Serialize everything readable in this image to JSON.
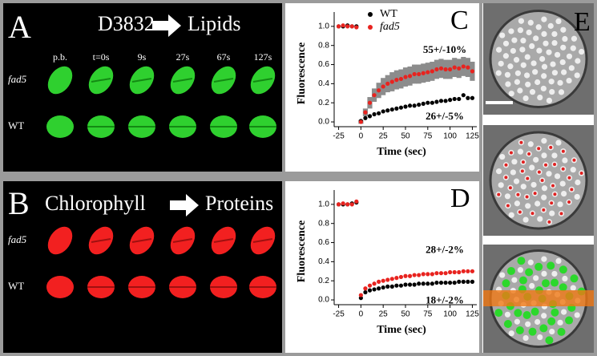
{
  "panel_a": {
    "label": "A",
    "source": "D3832",
    "target": "Lipids",
    "timepoints": [
      "p.b.",
      "t=0s",
      "9s",
      "27s",
      "67s",
      "127s"
    ],
    "rows": [
      "fad5",
      "WT"
    ]
  },
  "panel_b": {
    "label": "B",
    "source": "Chlorophyll",
    "target": "Proteins",
    "rows": [
      "fad5",
      "WT"
    ]
  },
  "panel_e": {
    "label": "E"
  },
  "chart_data": [
    {
      "type": "scatter",
      "panel": "C",
      "xlabel": "Time (sec)",
      "ylabel": "Fluorescence",
      "legend": "upper center",
      "xlim": [
        -30,
        130
      ],
      "ylim": [
        -0.05,
        1.15
      ],
      "xticks": [
        -25,
        0,
        25,
        50,
        75,
        100,
        125
      ],
      "yticks": [
        {
          "value": 0,
          "label": "0.0"
        },
        0.2,
        0.4,
        0.6,
        0.8,
        {
          "value": 1,
          "label": "1.0"
        }
      ],
      "x": [
        -25,
        -20,
        -15,
        -10,
        -5,
        0,
        5,
        10,
        15,
        20,
        25,
        30,
        35,
        40,
        45,
        50,
        55,
        60,
        65,
        70,
        75,
        80,
        85,
        90,
        95,
        100,
        105,
        110,
        115,
        120,
        125
      ],
      "series": [
        {
          "name": "WT",
          "color": "#000000",
          "annotation": "26+/-5%",
          "values": [
            1.0,
            1.0,
            1.01,
            1.0,
            1.0,
            0.01,
            0.04,
            0.06,
            0.08,
            0.09,
            0.11,
            0.12,
            0.13,
            0.14,
            0.15,
            0.16,
            0.17,
            0.17,
            0.18,
            0.19,
            0.2,
            0.2,
            0.21,
            0.22,
            0.22,
            0.23,
            0.24,
            0.24,
            0.28,
            0.25,
            0.25
          ]
        },
        {
          "name": "fad5",
          "color": "#e8231f",
          "annotation": "55+/-10%",
          "error_color": "#8c8c8c",
          "values": [
            1.0,
            1.01,
            1.0,
            1.0,
            0.99,
            0.0,
            0.1,
            0.2,
            0.28,
            0.33,
            0.37,
            0.4,
            0.42,
            0.44,
            0.45,
            0.47,
            0.48,
            0.5,
            0.5,
            0.51,
            0.52,
            0.53,
            0.55,
            0.56,
            0.55,
            0.55,
            0.57,
            0.56,
            0.58,
            0.57,
            0.53
          ],
          "error": [
            null,
            null,
            null,
            null,
            null,
            0.02,
            0.04,
            0.06,
            0.07,
            0.08,
            0.09,
            0.09,
            0.1,
            0.1,
            0.1,
            0.1,
            0.1,
            0.1,
            0.1,
            0.1,
            0.1,
            0.1,
            0.1,
            0.1,
            0.1,
            0.1,
            0.1,
            0.1,
            0.1,
            0.1,
            0.1
          ]
        }
      ]
    },
    {
      "type": "scatter",
      "panel": "D",
      "xlabel": "Time (sec)",
      "ylabel": "Fluorescence",
      "xlim": [
        -30,
        130
      ],
      "ylim": [
        -0.05,
        1.15
      ],
      "xticks": [
        -25,
        0,
        25,
        50,
        75,
        100,
        125
      ],
      "yticks": [
        {
          "value": 0,
          "label": "0.0"
        },
        0.2,
        0.4,
        0.6,
        0.8,
        {
          "value": 1,
          "label": "1.0"
        }
      ],
      "x": [
        -25,
        -20,
        -15,
        -10,
        -5,
        0,
        5,
        10,
        15,
        20,
        25,
        30,
        35,
        40,
        45,
        50,
        55,
        60,
        65,
        70,
        75,
        80,
        85,
        90,
        95,
        100,
        105,
        110,
        115,
        120,
        125
      ],
      "series": [
        {
          "color": "#000000",
          "annotation": "18+/-2%",
          "values": [
            1.0,
            1.0,
            1.0,
            1.01,
            1.02,
            0.02,
            0.08,
            0.1,
            0.11,
            0.12,
            0.13,
            0.14,
            0.14,
            0.15,
            0.15,
            0.16,
            0.16,
            0.16,
            0.17,
            0.17,
            0.17,
            0.17,
            0.18,
            0.18,
            0.18,
            0.18,
            0.18,
            0.19,
            0.19,
            0.19,
            0.19
          ]
        },
        {
          "color": "#e8231f",
          "annotation": "28+/-2%",
          "values": [
            1.0,
            1.01,
            1.0,
            1.0,
            1.03,
            0.05,
            0.12,
            0.15,
            0.17,
            0.19,
            0.2,
            0.21,
            0.22,
            0.23,
            0.24,
            0.25,
            0.25,
            0.26,
            0.26,
            0.27,
            0.27,
            0.27,
            0.28,
            0.28,
            0.28,
            0.29,
            0.29,
            0.29,
            0.3,
            0.3,
            0.3
          ]
        }
      ]
    }
  ]
}
